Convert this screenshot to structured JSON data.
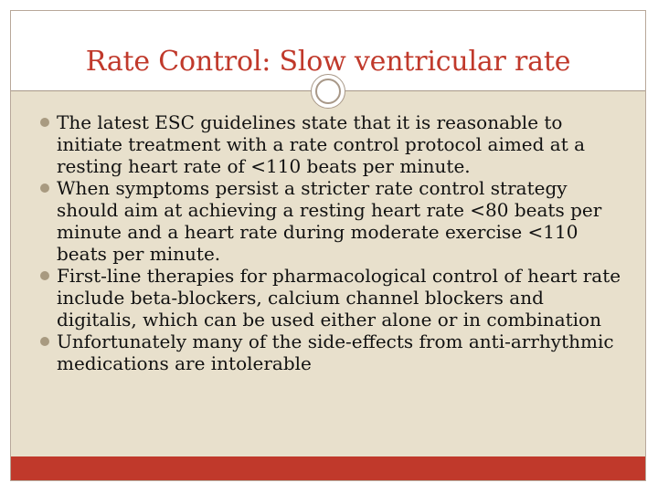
{
  "slide": {
    "title": "Rate Control: Slow ventricular rate",
    "bullets": [
      "The latest ESC guidelines state that it is reasonable to initiate treatment with a rate control protocol aimed at a resting heart rate of <110 beats per minute.",
      "When symptoms persist a stricter rate control strategy should aim at achieving a resting heart rate <80 beats per minute and a heart rate during moderate exercise <110 beats per minute.",
      "First-line therapies for pharmacological control of heart rate include beta-blockers, calcium channel blockers and digitalis, which can be used either alone or in combination",
      "Unfortunately many of the side-effects from anti-arrhythmic medications are intolerable"
    ]
  },
  "colors": {
    "title": "#c0392b",
    "content_background": "#e8e0cc",
    "footer_bar": "#c0392b",
    "bullet": "#a89a80"
  },
  "icons": {
    "bullet": "circle-bullet-icon",
    "ornament": "ring-ornament-icon"
  }
}
